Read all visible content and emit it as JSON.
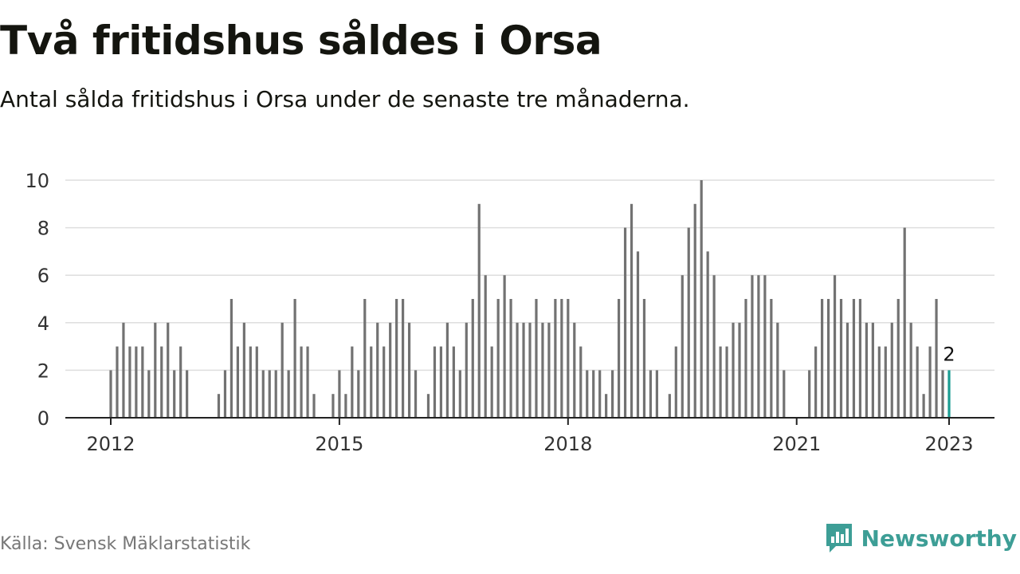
{
  "header": {
    "title": "Två fritidshus såldes i Orsa",
    "subtitle": "Antal sålda fritidshus i Orsa under de senaste tre månaderna."
  },
  "footer": {
    "source": "Källa: Svensk Mäklarstatistik",
    "brand": "Newsworthy",
    "brand_icon": "newsworthy-logo-icon"
  },
  "colors": {
    "bar": "#727272",
    "highlight": "#1a9c92",
    "grid": "#dedede",
    "axis": "#222222",
    "brand": "#3d9e96"
  },
  "chart_data": {
    "type": "bar",
    "start": "2012-01",
    "end": "2023-01",
    "x_ticks": [
      "2012",
      "2015",
      "2018",
      "2021",
      "2023"
    ],
    "y_ticks": [
      0,
      2,
      4,
      6,
      8,
      10
    ],
    "ylim": [
      0,
      10
    ],
    "grid": true,
    "highlight_label": "2",
    "values": [
      2,
      3,
      4,
      3,
      3,
      3,
      2,
      4,
      3,
      4,
      2,
      3,
      2,
      0,
      0,
      0,
      0,
      1,
      2,
      5,
      3,
      4,
      3,
      3,
      2,
      2,
      2,
      4,
      2,
      5,
      3,
      3,
      1,
      0,
      0,
      1,
      2,
      1,
      3,
      2,
      5,
      3,
      4,
      3,
      4,
      5,
      5,
      4,
      2,
      0,
      1,
      3,
      3,
      4,
      3,
      2,
      4,
      5,
      9,
      6,
      3,
      5,
      6,
      5,
      4,
      4,
      4,
      5,
      4,
      4,
      5,
      5,
      5,
      4,
      3,
      2,
      2,
      2,
      1,
      2,
      5,
      8,
      9,
      7,
      5,
      2,
      2,
      0,
      1,
      3,
      6,
      8,
      9,
      10,
      7,
      6,
      3,
      3,
      4,
      4,
      5,
      6,
      6,
      6,
      5,
      4,
      2,
      0,
      0,
      0,
      2,
      3,
      5,
      5,
      6,
      5,
      4,
      5,
      5,
      4,
      4,
      3,
      3,
      4,
      5,
      8,
      4,
      3,
      1,
      3,
      5,
      2,
      2
    ]
  }
}
